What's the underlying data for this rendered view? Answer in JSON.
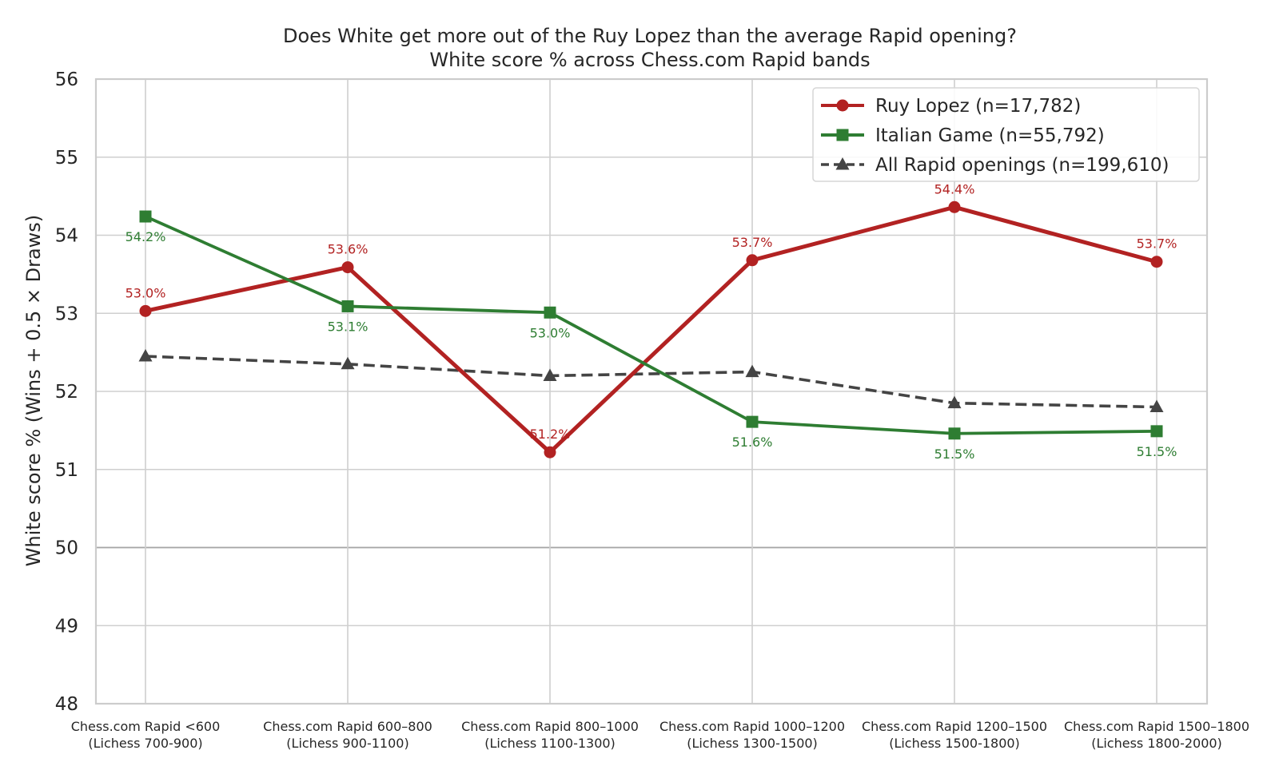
{
  "chart_data": {
    "type": "line",
    "title": "Does White get more out of the Ruy Lopez than the average Rapid opening?",
    "subtitle": "White score % across Chess.com Rapid bands",
    "ylabel": "White score % (Wins + 0.5 × Draws)",
    "xlabel": "",
    "ylim": [
      48,
      56
    ],
    "yticks": [
      "48",
      "49",
      "50",
      "51",
      "52",
      "53",
      "54",
      "55",
      "56"
    ],
    "grid": true,
    "legend_position": "top-right",
    "reference_line": 50,
    "categories": [
      [
        "Chess.com Rapid <600",
        "(Lichess 700-900)"
      ],
      [
        "Chess.com Rapid 600–800",
        "(Lichess 900-1100)"
      ],
      [
        "Chess.com Rapid 800–1000",
        "(Lichess 1100-1300)"
      ],
      [
        "Chess.com Rapid 1000–1200",
        "(Lichess 1300-1500)"
      ],
      [
        "Chess.com Rapid 1200–1500",
        "(Lichess 1500-1800)"
      ],
      [
        "Chess.com Rapid 1500–1800",
        "(Lichess 1800-2000)"
      ]
    ],
    "series": [
      {
        "name": "Ruy Lopez (n=17,782)",
        "color": "#b22222",
        "marker": "circle",
        "dashed": false,
        "values": [
          53.03,
          53.59,
          51.22,
          53.68,
          54.36,
          53.66
        ],
        "labels": [
          "53.0%",
          "53.6%",
          "51.2%",
          "53.7%",
          "54.4%",
          "53.7%"
        ],
        "label_position": "above"
      },
      {
        "name": "Italian Game (n=55,792)",
        "color": "#2e7d32",
        "marker": "square",
        "dashed": false,
        "values": [
          54.24,
          53.09,
          53.01,
          51.61,
          51.46,
          51.49
        ],
        "labels": [
          "54.2%",
          "53.1%",
          "53.0%",
          "51.6%",
          "51.5%",
          "51.5%"
        ],
        "label_position": "below"
      },
      {
        "name": "All Rapid openings (n=199,610)",
        "color": "#444444",
        "marker": "triangle",
        "dashed": true,
        "values": [
          52.45,
          52.35,
          52.2,
          52.25,
          51.85,
          51.8
        ],
        "labels": [],
        "label_position": "none"
      }
    ]
  }
}
